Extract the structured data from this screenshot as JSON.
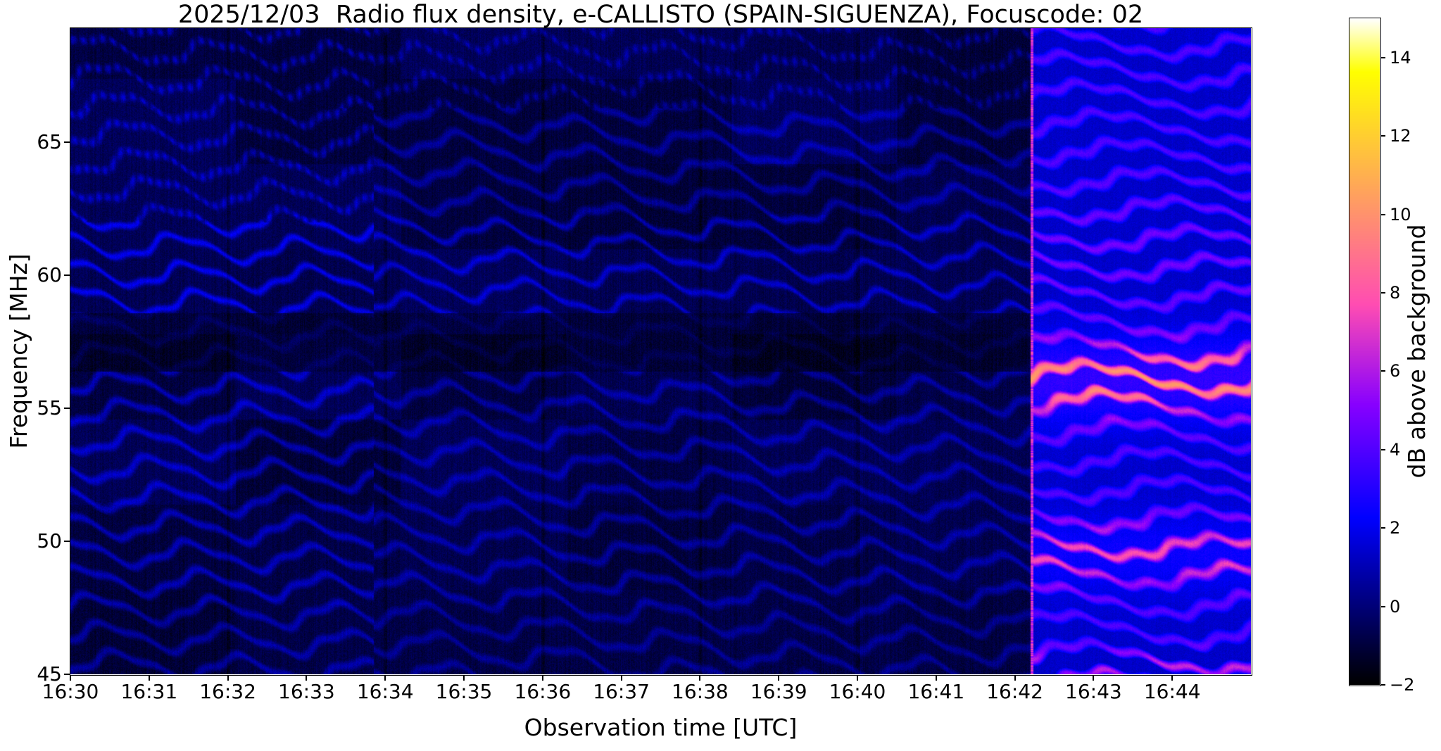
{
  "figure": {
    "date": "2025/12/03",
    "instrument": "e-CALLISTO",
    "station": "SPAIN-SIGUENZA",
    "focuscode": "02"
  },
  "chart_data": {
    "type": "heatmap",
    "subtype": "radio-spectrogram",
    "title": "2025/12/03  Radio flux density, e-CALLISTO (SPAIN-SIGUENZA), Focuscode: 02",
    "xlabel": "Observation time [UTC]",
    "ylabel": "Frequency [MHz]",
    "x_ticks": [
      "16:30",
      "16:31",
      "16:32",
      "16:33",
      "16:34",
      "16:35",
      "16:36",
      "16:37",
      "16:38",
      "16:39",
      "16:40",
      "16:41",
      "16:42",
      "16:43",
      "16:44"
    ],
    "x_tick_minutes": [
      0,
      1,
      2,
      3,
      4,
      5,
      6,
      7,
      8,
      9,
      10,
      11,
      12,
      13,
      14
    ],
    "x_range_minutes": [
      0,
      15
    ],
    "x_start": "16:30",
    "x_end": "16:45",
    "y_ticks": [
      65,
      60,
      55,
      50,
      45
    ],
    "y_range_mhz": [
      45.0,
      69.3
    ],
    "grid": false,
    "colorbar": {
      "label": "dB above background",
      "ticks": [
        14,
        12,
        10,
        8,
        6,
        4,
        2,
        0,
        -2
      ],
      "tick_labels": [
        "14",
        "12",
        "10",
        "8",
        "6",
        "4",
        "2",
        "0",
        "−2"
      ],
      "vmin": -2,
      "vmax": 15,
      "colormap": "gnuplot2",
      "colormap_stops": [
        "#000000",
        "#0000cc",
        "#0000ff",
        "#8700ff",
        "#ff4db3",
        "#ffa857",
        "#ffff00",
        "#ffffff"
      ]
    },
    "features": [
      {
        "name": "quiet-background",
        "t_start_min": 0,
        "t_end_min": 12.2,
        "db_range": [
          -2,
          2
        ],
        "description": "Dark navy background crossed by wavy horizontal interference fringes spaced about 1 MHz apart"
      },
      {
        "name": "fringe-pattern-change",
        "t_min": 3.85,
        "description": "Vertical texture seam near 16:33.8 where the fringe pattern changes from dotted bands to fainter diagonal stripes"
      },
      {
        "name": "dark-lane",
        "f_start_mhz": 56.4,
        "f_end_mhz": 58.6,
        "description": "Suppressed, nearly black horizontal band across the quiet interval"
      },
      {
        "name": "enhanced-broadband-emission",
        "t_start_min": 12.2,
        "t_end_min": 15,
        "db_range": [
          2,
          11
        ],
        "bright_bands_mhz": [
          56.1,
          49.55,
          45.35
        ],
        "peak_db": 11,
        "description": "Bright wavy broadband emission after ~16:42:15; strongest pink/salmon band near 56 MHz, secondary magenta band near 49.5 MHz"
      }
    ]
  }
}
